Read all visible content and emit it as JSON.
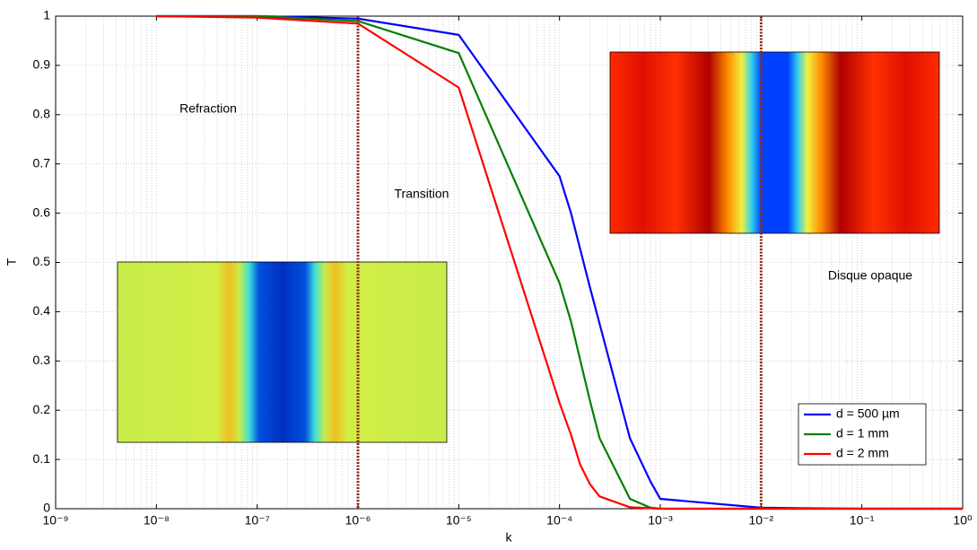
{
  "chart_data": {
    "type": "line",
    "xlabel": "k",
    "ylabel": "T",
    "xscale": "log",
    "xlim": [
      1e-09,
      1
    ],
    "ylim": [
      0,
      1
    ],
    "xticks": [
      {
        "value": 1e-09,
        "label": "10⁻⁹"
      },
      {
        "value": 1e-08,
        "label": "10⁻⁸"
      },
      {
        "value": 1e-07,
        "label": "10⁻⁷"
      },
      {
        "value": 1e-06,
        "label": "10⁻⁶"
      },
      {
        "value": 1e-05,
        "label": "10⁻⁵"
      },
      {
        "value": 0.0001,
        "label": "10⁻⁴"
      },
      {
        "value": 0.001,
        "label": "10⁻³"
      },
      {
        "value": 0.01,
        "label": "10⁻²"
      },
      {
        "value": 0.1,
        "label": "10⁻¹"
      },
      {
        "value": 1,
        "label": "10⁰"
      }
    ],
    "yticks": [
      0,
      0.1,
      0.2,
      0.3,
      0.4,
      0.5,
      0.6,
      0.7,
      0.8,
      0.9,
      1
    ],
    "grid": true,
    "legend": "lower right",
    "vlines": [
      1e-06,
      0.01
    ],
    "vline_color": "#8b2a12",
    "annotations": [
      "Refraction",
      "Transition",
      "Disque opaque"
    ],
    "series": [
      {
        "name": "d = 500 µm",
        "color": "#0000ff",
        "x": [
          1e-08,
          1e-07,
          1e-06,
          1e-05,
          0.0001,
          0.00013,
          0.0002,
          0.0005,
          0.0008,
          0.001,
          0.01,
          0.1,
          1
        ],
        "values": [
          1,
          1,
          0.995,
          0.962,
          0.675,
          0.6,
          0.45,
          0.143,
          0.055,
          0.02,
          0.002,
          0,
          0
        ]
      },
      {
        "name": "d = 1 mm",
        "color": "#008000",
        "x": [
          1e-08,
          1e-07,
          1e-06,
          1e-05,
          0.0001,
          0.00013,
          0.0002,
          0.00025,
          0.0005,
          0.0008,
          0.001,
          0.01,
          0.1,
          1
        ],
        "values": [
          1,
          1,
          0.99,
          0.925,
          0.458,
          0.38,
          0.22,
          0.143,
          0.02,
          0.002,
          0,
          0,
          0,
          0
        ]
      },
      {
        "name": "d = 2 mm",
        "color": "#ff0000",
        "x": [
          1e-08,
          1e-07,
          1e-06,
          1e-05,
          0.0001,
          0.00013,
          0.00016,
          0.0002,
          0.00025,
          0.0005,
          0.001,
          0.01,
          0.1,
          1
        ],
        "values": [
          1,
          0.997,
          0.985,
          0.855,
          0.215,
          0.15,
          0.09,
          0.05,
          0.025,
          0.003,
          0,
          0,
          0,
          0
        ]
      }
    ]
  }
}
